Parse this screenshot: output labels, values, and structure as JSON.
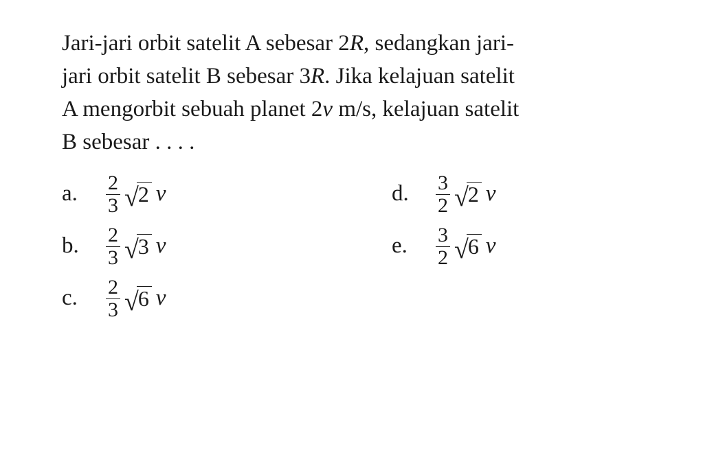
{
  "text_color": "#1a1a1a",
  "background_color": "#ffffff",
  "font_family": "Times New Roman",
  "base_fontsize": 33,
  "question": {
    "line1_a": "Jari-jari orbit satelit A sebesar 2",
    "line1_R": "R",
    "line1_b": ", sedangkan jari-",
    "line2_a": "jari orbit satelit B sebesar 3",
    "line2_R": "R",
    "line2_b": ". Jika kelajuan satelit",
    "line3_a": "A mengorbit sebuah planet 2",
    "line3_v": "v",
    "line3_b": " m/s, kelajuan satelit",
    "line4": "B sebesar . . . ."
  },
  "options": [
    {
      "key": "a.",
      "frac_num": "2",
      "frac_den": "3",
      "radicand": "2",
      "trail": "v"
    },
    {
      "key": "b.",
      "frac_num": "2",
      "frac_den": "3",
      "radicand": "3",
      "trail": "v"
    },
    {
      "key": "c.",
      "frac_num": "2",
      "frac_den": "3",
      "radicand": "6",
      "trail": "v"
    },
    {
      "key": "d.",
      "frac_num": "3",
      "frac_den": "2",
      "radicand": "2",
      "trail": "v"
    },
    {
      "key": "e.",
      "frac_num": "3",
      "frac_den": "2",
      "radicand": "6",
      "trail": "v"
    }
  ]
}
